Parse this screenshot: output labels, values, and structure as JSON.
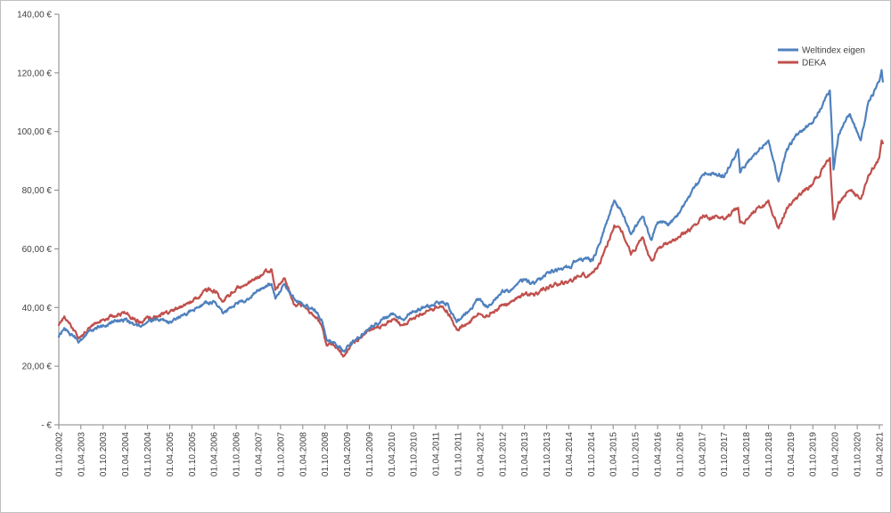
{
  "chart_data": {
    "type": "line",
    "title": "",
    "xlabel": "",
    "ylabel": "",
    "ylim": [
      0,
      140
    ],
    "y_ticks": [
      0,
      20,
      40,
      60,
      80,
      100,
      120,
      140
    ],
    "y_tick_labels": [
      "-   €",
      "20,00 €",
      "40,00 €",
      "60,00 €",
      "80,00 €",
      "100,00 €",
      "120,00 €",
      "140,00 €"
    ],
    "x_ticks": [
      "01.10.2002",
      "01.04.2003",
      "01.10.2003",
      "01.04.2004",
      "01.10.2004",
      "01.04.2005",
      "01.10.2005",
      "01.04.2006",
      "01.10.2006",
      "01.04.2007",
      "01.10.2007",
      "01.04.2008",
      "01.10.2008",
      "01.04.2009",
      "01.10.2009",
      "01.04.2010",
      "01.10.2010",
      "01.04.2011",
      "01.10.2011",
      "01.04.2012",
      "01.10.2012",
      "01.04.2013",
      "01.10.2013",
      "01.04.2014",
      "01.10.2014",
      "01.04.2015",
      "01.10.2015",
      "01.04.2016",
      "01.10.2016",
      "01.04.2017",
      "01.10.2017",
      "01.04.2018",
      "01.10.2018",
      "01.04.2019",
      "01.10.2019",
      "01.04.2020",
      "01.10.2020",
      "01.04.2021"
    ],
    "grid": false,
    "legend_position": "top-right",
    "series": [
      {
        "name": "Weltindex eigen",
        "color": "#4f81bd",
        "points": [
          [
            "2002-10-01",
            30
          ],
          [
            "2002-11-15",
            33
          ],
          [
            "2003-01-15",
            31
          ],
          [
            "2003-03-12",
            28
          ],
          [
            "2003-06-01",
            32
          ],
          [
            "2003-10-01",
            34
          ],
          [
            "2004-01-15",
            35.5
          ],
          [
            "2004-04-01",
            36
          ],
          [
            "2004-08-10",
            33.5
          ],
          [
            "2004-10-01",
            35
          ],
          [
            "2005-01-01",
            35.5
          ],
          [
            "2005-04-01",
            35
          ],
          [
            "2005-08-01",
            38
          ],
          [
            "2005-10-01",
            39
          ],
          [
            "2006-02-01",
            41.5
          ],
          [
            "2006-04-01",
            42
          ],
          [
            "2006-06-15",
            38
          ],
          [
            "2006-10-01",
            41.5
          ],
          [
            "2007-01-01",
            43
          ],
          [
            "2007-05-01",
            46.5
          ],
          [
            "2007-07-20",
            48
          ],
          [
            "2007-08-20",
            43
          ],
          [
            "2007-10-31",
            48
          ],
          [
            "2008-01-20",
            43
          ],
          [
            "2008-04-01",
            41
          ],
          [
            "2008-06-15",
            40
          ],
          [
            "2008-09-01",
            36
          ],
          [
            "2008-10-15",
            29
          ],
          [
            "2008-12-15",
            28
          ],
          [
            "2009-03-09",
            25
          ],
          [
            "2009-05-01",
            28
          ],
          [
            "2009-08-01",
            31
          ],
          [
            "2009-10-01",
            33
          ],
          [
            "2010-01-15",
            36
          ],
          [
            "2010-04-15",
            38
          ],
          [
            "2010-07-01",
            36
          ],
          [
            "2010-10-01",
            38.5
          ],
          [
            "2011-01-01",
            40
          ],
          [
            "2011-04-15",
            42
          ],
          [
            "2011-07-01",
            41.5
          ],
          [
            "2011-09-20",
            35
          ],
          [
            "2011-12-15",
            38
          ],
          [
            "2012-03-15",
            43
          ],
          [
            "2012-06-01",
            40
          ],
          [
            "2012-10-01",
            46
          ],
          [
            "2012-12-15",
            46
          ],
          [
            "2013-04-01",
            49.5
          ],
          [
            "2013-06-20",
            48
          ],
          [
            "2013-10-01",
            52
          ],
          [
            "2014-01-15",
            53
          ],
          [
            "2014-04-01",
            54
          ],
          [
            "2014-07-01",
            56.5
          ],
          [
            "2014-10-15",
            56
          ],
          [
            "2014-12-15",
            62
          ],
          [
            "2015-04-10",
            76.5
          ],
          [
            "2015-06-15",
            72
          ],
          [
            "2015-08-25",
            65
          ],
          [
            "2015-11-30",
            71
          ],
          [
            "2016-02-11",
            63
          ],
          [
            "2016-04-01",
            69
          ],
          [
            "2016-06-27",
            68
          ],
          [
            "2016-10-01",
            72.5
          ],
          [
            "2016-12-31",
            79
          ],
          [
            "2017-04-01",
            85
          ],
          [
            "2017-07-01",
            86
          ],
          [
            "2017-10-01",
            84.5
          ],
          [
            "2018-01-25",
            94
          ],
          [
            "2018-02-09",
            86
          ],
          [
            "2018-04-01",
            89
          ],
          [
            "2018-07-01",
            93
          ],
          [
            "2018-10-01",
            97
          ],
          [
            "2018-12-24",
            83
          ],
          [
            "2019-03-01",
            94
          ],
          [
            "2019-06-01",
            99
          ],
          [
            "2019-10-01",
            103
          ],
          [
            "2020-02-19",
            114
          ],
          [
            "2020-03-20",
            87
          ],
          [
            "2020-04-30",
            99
          ],
          [
            "2020-06-15",
            103
          ],
          [
            "2020-08-01",
            106
          ],
          [
            "2020-10-30",
            97
          ],
          [
            "2020-12-31",
            110
          ],
          [
            "2021-03-31",
            117
          ],
          [
            "2021-04-20",
            121
          ],
          [
            "2021-04-30",
            117
          ]
        ]
      },
      {
        "name": "DEKA",
        "color": "#c0504d",
        "points": [
          [
            "2002-10-01",
            34
          ],
          [
            "2002-11-15",
            37
          ],
          [
            "2003-01-15",
            33
          ],
          [
            "2003-03-12",
            29.5
          ],
          [
            "2003-06-01",
            33
          ],
          [
            "2003-10-01",
            36
          ],
          [
            "2004-01-15",
            37
          ],
          [
            "2004-04-01",
            38
          ],
          [
            "2004-08-10",
            35
          ],
          [
            "2004-10-01",
            37
          ],
          [
            "2005-01-01",
            37
          ],
          [
            "2005-04-01",
            38.5
          ],
          [
            "2005-08-01",
            41
          ],
          [
            "2005-10-01",
            42
          ],
          [
            "2006-02-01",
            45.5
          ],
          [
            "2006-04-01",
            46
          ],
          [
            "2006-06-15",
            42
          ],
          [
            "2006-10-01",
            46.5
          ],
          [
            "2007-01-01",
            48
          ],
          [
            "2007-05-01",
            51
          ],
          [
            "2007-07-20",
            53
          ],
          [
            "2007-08-20",
            46
          ],
          [
            "2007-10-31",
            50
          ],
          [
            "2008-01-20",
            41
          ],
          [
            "2008-04-01",
            41
          ],
          [
            "2008-06-15",
            38
          ],
          [
            "2008-09-01",
            34
          ],
          [
            "2008-10-15",
            27
          ],
          [
            "2008-12-15",
            27
          ],
          [
            "2009-03-09",
            23.5
          ],
          [
            "2009-05-01",
            27
          ],
          [
            "2009-08-01",
            30
          ],
          [
            "2009-10-01",
            32
          ],
          [
            "2010-01-15",
            34
          ],
          [
            "2010-04-15",
            36
          ],
          [
            "2010-07-01",
            34
          ],
          [
            "2010-10-01",
            36.5
          ],
          [
            "2011-01-01",
            38
          ],
          [
            "2011-04-15",
            40
          ],
          [
            "2011-07-01",
            39
          ],
          [
            "2011-09-20",
            32.5
          ],
          [
            "2011-12-15",
            34.5
          ],
          [
            "2012-03-15",
            38
          ],
          [
            "2012-06-01",
            37
          ],
          [
            "2012-10-01",
            41
          ],
          [
            "2012-12-15",
            42
          ],
          [
            "2013-04-01",
            44.5
          ],
          [
            "2013-06-20",
            44
          ],
          [
            "2013-10-01",
            47
          ],
          [
            "2014-01-15",
            48
          ],
          [
            "2014-04-01",
            49
          ],
          [
            "2014-07-01",
            50.5
          ],
          [
            "2014-10-15",
            52
          ],
          [
            "2014-12-15",
            55
          ],
          [
            "2015-04-10",
            68
          ],
          [
            "2015-06-15",
            66
          ],
          [
            "2015-08-25",
            58
          ],
          [
            "2015-11-30",
            64
          ],
          [
            "2016-02-11",
            56
          ],
          [
            "2016-04-01",
            60
          ],
          [
            "2016-06-27",
            62
          ],
          [
            "2016-10-01",
            64
          ],
          [
            "2016-12-31",
            67
          ],
          [
            "2017-04-01",
            70.5
          ],
          [
            "2017-07-01",
            71
          ],
          [
            "2017-10-01",
            70
          ],
          [
            "2018-01-25",
            74
          ],
          [
            "2018-02-09",
            69
          ],
          [
            "2018-04-01",
            70
          ],
          [
            "2018-07-01",
            74
          ],
          [
            "2018-10-01",
            76.5
          ],
          [
            "2018-12-24",
            67
          ],
          [
            "2019-03-01",
            74
          ],
          [
            "2019-06-01",
            78
          ],
          [
            "2019-10-01",
            82
          ],
          [
            "2020-02-19",
            91
          ],
          [
            "2020-03-20",
            70
          ],
          [
            "2020-04-30",
            76
          ],
          [
            "2020-06-15",
            78
          ],
          [
            "2020-08-01",
            80
          ],
          [
            "2020-10-30",
            77
          ],
          [
            "2020-12-31",
            85
          ],
          [
            "2021-03-31",
            91
          ],
          [
            "2021-04-20",
            97
          ],
          [
            "2021-04-30",
            96
          ]
        ]
      }
    ]
  }
}
